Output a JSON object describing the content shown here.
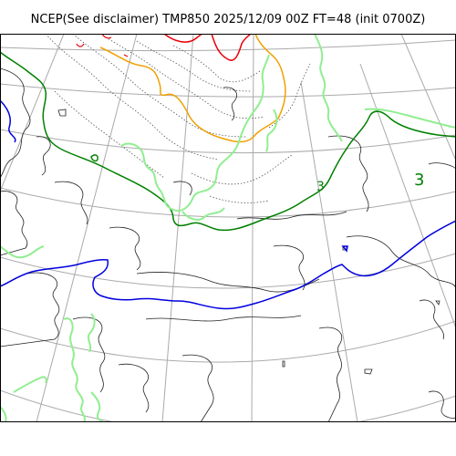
{
  "title": "NCEP(See disclaimer) TMP850 2025/12/09 00Z FT=48 (init 0700Z)",
  "contour_labels": {
    "left": "3",
    "right": "3"
  },
  "colors": {
    "gridline": "#aaaaaa",
    "coastline": "#000000",
    "isoline_thin": "#444444",
    "isoline_dotted": "#555555",
    "isotherm_red": "#e8000b",
    "isotherm_orange": "#f0a000",
    "isotherm_dark_green": "#008000",
    "isotherm_light_green": "#90ee90",
    "isotherm_blue": "#0000e0"
  }
}
